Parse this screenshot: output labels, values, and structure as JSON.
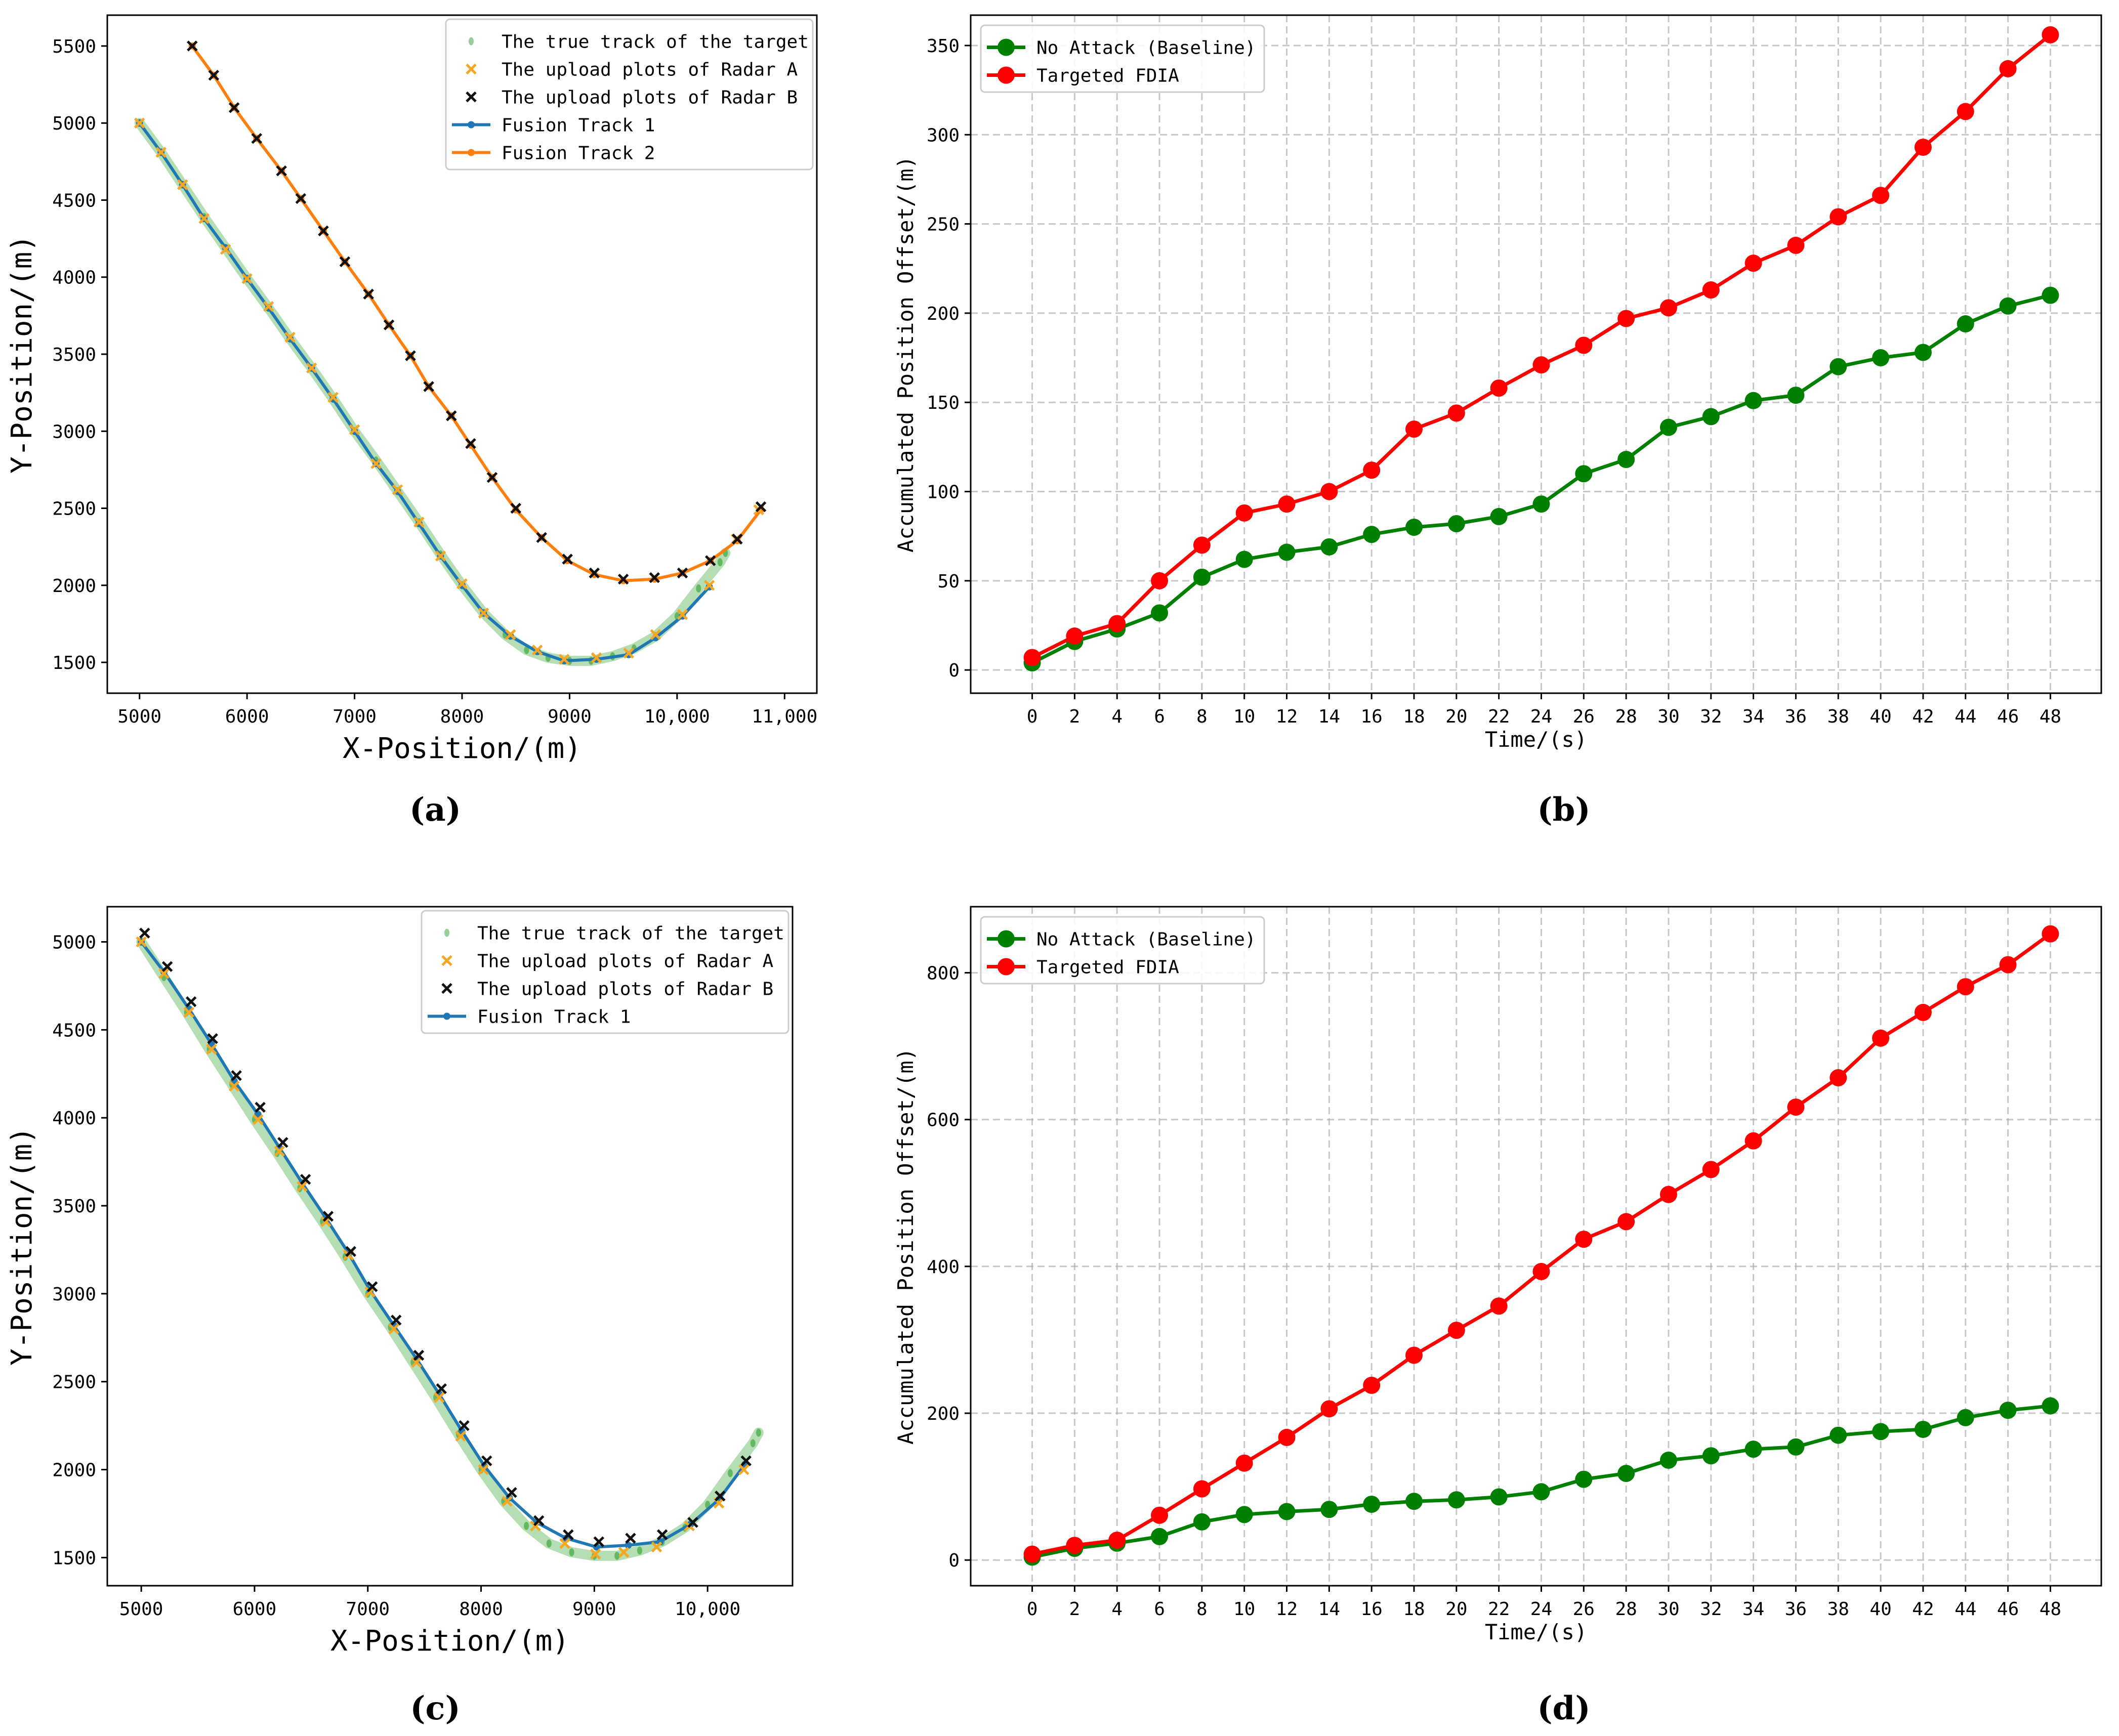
{
  "colors": {
    "true_track": "#2ca02c",
    "radar_a": "#f5a623",
    "radar_b": "#111111",
    "fusion_1": "#1f77b4",
    "fusion_2": "#ff7f0e",
    "no_attack": "#008000",
    "fdia": "#ff0000",
    "grid": "#b0b0b0"
  },
  "captions": [
    "(a)",
    "(b)",
    "(c)",
    "(d)"
  ],
  "chart_data": [
    {
      "id": "a",
      "type": "scatter",
      "caption": "(a)",
      "xlabel": "X-Position/(m)",
      "ylabel": "Y-Position/(m)",
      "xlim": [
        4700,
        11300
      ],
      "ylim": [
        1300,
        5700
      ],
      "xticks": [
        5000,
        6000,
        7000,
        8000,
        9000,
        10000,
        11000
      ],
      "xtick_labels": [
        "5000",
        "6000",
        "7000",
        "8000",
        "9000",
        "10,000",
        "11,000"
      ],
      "yticks": [
        1500,
        2000,
        2500,
        3000,
        3500,
        4000,
        4500,
        5000,
        5500
      ],
      "ytick_labels": [
        "1500",
        "2000",
        "2500",
        "3000",
        "3500",
        "4000",
        "4500",
        "5000",
        "5500"
      ],
      "grid": false,
      "legend_position": "top-right",
      "series": [
        {
          "name": "The true track of the target",
          "kind": "true",
          "x": [
            5000,
            5200,
            5400,
            5600,
            5800,
            6000,
            6200,
            6400,
            6600,
            6800,
            7000,
            7200,
            7400,
            7600,
            7800,
            8000,
            8200,
            8400,
            8600,
            8800,
            9000,
            9200,
            9400,
            9600,
            9800,
            10000,
            10200,
            10400,
            10450
          ],
          "y": [
            5000,
            4810,
            4600,
            4390,
            4190,
            3990,
            3800,
            3600,
            3410,
            3210,
            3000,
            2810,
            2610,
            2410,
            2200,
            2000,
            1820,
            1680,
            1580,
            1530,
            1510,
            1510,
            1540,
            1590,
            1670,
            1800,
            1980,
            2150,
            2210
          ]
        },
        {
          "name": "The upload plots of Radar A",
          "kind": "radarA",
          "x": [
            5000,
            5200,
            5400,
            5600,
            5800,
            6000,
            6200,
            6400,
            6600,
            6800,
            7000,
            7200,
            7400,
            7600,
            7800,
            8000,
            8200,
            8450,
            8700,
            8950,
            9250,
            9550,
            9800,
            10050,
            10300,
            10550,
            10760
          ],
          "y": [
            5000,
            4810,
            4600,
            4380,
            4180,
            3990,
            3810,
            3610,
            3410,
            3220,
            3010,
            2790,
            2620,
            2410,
            2190,
            2010,
            1820,
            1680,
            1580,
            1520,
            1530,
            1560,
            1680,
            1810,
            2000,
            2300,
            2490
          ]
        },
        {
          "name": "The upload plots of Radar B",
          "kind": "radarB",
          "x": [
            5490,
            5690,
            5880,
            6090,
            6320,
            6500,
            6710,
            6910,
            7130,
            7320,
            7520,
            7690,
            7900,
            8080,
            8280,
            8500,
            8740,
            8980,
            9230,
            9500,
            9790,
            10050,
            10310,
            10560,
            10780
          ],
          "y": [
            5500,
            5310,
            5100,
            4900,
            4690,
            4510,
            4300,
            4100,
            3890,
            3690,
            3490,
            3290,
            3100,
            2920,
            2700,
            2500,
            2310,
            2170,
            2080,
            2040,
            2050,
            2080,
            2160,
            2300,
            2510
          ]
        },
        {
          "name": "Fusion Track 1",
          "kind": "fusion1",
          "x": [
            5000,
            5200,
            5400,
            5600,
            5800,
            6000,
            6200,
            6400,
            6600,
            6800,
            7000,
            7200,
            7400,
            7600,
            7800,
            8000,
            8200,
            8450,
            8700,
            8950,
            9250,
            9550,
            9800,
            10050,
            10300
          ],
          "y": [
            5000,
            4810,
            4600,
            4380,
            4190,
            3990,
            3800,
            3600,
            3410,
            3210,
            3000,
            2790,
            2610,
            2400,
            2190,
            2000,
            1820,
            1670,
            1570,
            1510,
            1520,
            1550,
            1660,
            1800,
            1990
          ]
        },
        {
          "name": "Fusion Track 2",
          "kind": "fusion2",
          "x": [
            5490,
            5690,
            5880,
            6090,
            6320,
            6500,
            6710,
            6910,
            7130,
            7320,
            7520,
            7690,
            7900,
            8080,
            8280,
            8500,
            8740,
            8980,
            9230,
            9500,
            9790,
            10050,
            10310,
            10560,
            10780
          ],
          "y": [
            5500,
            5310,
            5100,
            4900,
            4690,
            4510,
            4300,
            4100,
            3890,
            3690,
            3490,
            3290,
            3100,
            2910,
            2700,
            2490,
            2310,
            2160,
            2070,
            2030,
            2040,
            2080,
            2160,
            2290,
            2490
          ]
        }
      ]
    },
    {
      "id": "b",
      "type": "line",
      "caption": "(b)",
      "xlabel": "Time/(s)",
      "ylabel": "Accumulated Position Offset/(m)",
      "xlim": [
        -2.9,
        50.4
      ],
      "ylim": [
        -13,
        367
      ],
      "xticks": [
        0,
        2,
        4,
        6,
        8,
        10,
        12,
        14,
        16,
        18,
        20,
        22,
        24,
        26,
        28,
        30,
        32,
        34,
        36,
        38,
        40,
        42,
        44,
        46,
        48
      ],
      "xtick_labels": [
        "0",
        "2",
        "4",
        "6",
        "8",
        "10",
        "12",
        "14",
        "16",
        "18",
        "20",
        "22",
        "24",
        "26",
        "28",
        "30",
        "32",
        "34",
        "36",
        "38",
        "40",
        "42",
        "44",
        "46",
        "48"
      ],
      "yticks": [
        0,
        50,
        100,
        150,
        200,
        250,
        300,
        350
      ],
      "ytick_labels": [
        "0",
        "50",
        "100",
        "150",
        "200",
        "250",
        "300",
        "350"
      ],
      "grid": true,
      "legend_position": "top-left",
      "x": [
        0,
        2,
        4,
        6,
        8,
        10,
        12,
        14,
        16,
        18,
        20,
        22,
        24,
        26,
        28,
        30,
        32,
        34,
        36,
        38,
        40,
        42,
        44,
        46,
        48
      ],
      "series": [
        {
          "name": "No Attack (Baseline)",
          "kind": "noattack",
          "values": [
            4,
            16,
            23,
            32,
            52,
            62,
            66,
            69,
            76,
            80,
            82,
            86,
            93,
            110,
            118,
            136,
            142,
            151,
            154,
            170,
            175,
            178,
            194,
            204,
            210
          ]
        },
        {
          "name": "Targeted FDIA",
          "kind": "fdia",
          "values": [
            7,
            19,
            26,
            50,
            70,
            88,
            93,
            100,
            112,
            135,
            144,
            158,
            171,
            182,
            197,
            203,
            213,
            228,
            238,
            254,
            266,
            293,
            313,
            337,
            356
          ]
        }
      ]
    },
    {
      "id": "c",
      "type": "scatter",
      "caption": "(c)",
      "xlabel": "X-Position/(m)",
      "ylabel": "Y-Position/(m)",
      "xlim": [
        4700,
        10750
      ],
      "ylim": [
        1340,
        5200
      ],
      "xticks": [
        5000,
        6000,
        7000,
        8000,
        9000,
        10000
      ],
      "xtick_labels": [
        "5000",
        "6000",
        "7000",
        "8000",
        "9000",
        "10,000"
      ],
      "yticks": [
        1500,
        2000,
        2500,
        3000,
        3500,
        4000,
        4500,
        5000
      ],
      "ytick_labels": [
        "1500",
        "2000",
        "2500",
        "3000",
        "3500",
        "4000",
        "4500",
        "5000"
      ],
      "grid": false,
      "legend_position": "top-right",
      "series": [
        {
          "name": "The true track of the target",
          "kind": "true",
          "x": [
            5000,
            5200,
            5400,
            5600,
            5800,
            6000,
            6200,
            6400,
            6600,
            6800,
            7000,
            7200,
            7400,
            7600,
            7800,
            8000,
            8200,
            8400,
            8600,
            8800,
            9000,
            9200,
            9400,
            9600,
            9800,
            10000,
            10200,
            10400,
            10450
          ],
          "y": [
            5000,
            4800,
            4600,
            4390,
            4190,
            3990,
            3800,
            3600,
            3410,
            3210,
            3000,
            2810,
            2610,
            2410,
            2200,
            2000,
            1820,
            1680,
            1580,
            1530,
            1510,
            1510,
            1540,
            1590,
            1670,
            1800,
            1980,
            2150,
            2210
          ]
        },
        {
          "name": "The upload plots of Radar A",
          "kind": "radarA",
          "x": [
            5000,
            5200,
            5420,
            5620,
            5820,
            6030,
            6220,
            6420,
            6630,
            6830,
            7020,
            7230,
            7430,
            7630,
            7820,
            8020,
            8230,
            8480,
            8740,
            9010,
            9260,
            9550,
            9840,
            10100,
            10320
          ],
          "y": [
            5000,
            4820,
            4600,
            4390,
            4180,
            3990,
            3810,
            3610,
            3410,
            3220,
            3010,
            2800,
            2610,
            2410,
            2190,
            2000,
            1820,
            1680,
            1580,
            1520,
            1530,
            1560,
            1680,
            1810,
            2000
          ]
        },
        {
          "name": "The upload plots of Radar B",
          "kind": "radarB",
          "x": [
            5030,
            5230,
            5440,
            5630,
            5840,
            6050,
            6250,
            6450,
            6650,
            6850,
            7040,
            7250,
            7450,
            7650,
            7850,
            8050,
            8270,
            8510,
            8770,
            9040,
            9320,
            9600,
            9870,
            10110,
            10340
          ],
          "y": [
            5050,
            4860,
            4660,
            4450,
            4240,
            4060,
            3860,
            3650,
            3440,
            3240,
            3040,
            2850,
            2650,
            2460,
            2250,
            2050,
            1870,
            1710,
            1630,
            1590,
            1610,
            1630,
            1700,
            1850,
            2050
          ]
        },
        {
          "name": "Fusion Track 1",
          "kind": "fusion1",
          "x": [
            5000,
            5200,
            5420,
            5620,
            5820,
            6030,
            6220,
            6420,
            6630,
            6830,
            7020,
            7230,
            7430,
            7630,
            7830,
            8030,
            8250,
            8490,
            8750,
            9020,
            9300,
            9580,
            9850,
            10100,
            10330
          ],
          "y": [
            5000,
            4830,
            4620,
            4420,
            4210,
            4020,
            3830,
            3630,
            3430,
            3230,
            3020,
            2820,
            2630,
            2430,
            2220,
            2020,
            1840,
            1700,
            1610,
            1560,
            1570,
            1590,
            1690,
            1830,
            2030
          ]
        }
      ]
    },
    {
      "id": "d",
      "type": "line",
      "caption": "(d)",
      "xlabel": "Time/(s)",
      "ylabel": "Accumulated Position Offset/(m)",
      "xlim": [
        -2.9,
        50.4
      ],
      "ylim": [
        -35,
        890
      ],
      "xticks": [
        0,
        2,
        4,
        6,
        8,
        10,
        12,
        14,
        16,
        18,
        20,
        22,
        24,
        26,
        28,
        30,
        32,
        34,
        36,
        38,
        40,
        42,
        44,
        46,
        48
      ],
      "xtick_labels": [
        "0",
        "2",
        "4",
        "6",
        "8",
        "10",
        "12",
        "14",
        "16",
        "18",
        "20",
        "22",
        "24",
        "26",
        "28",
        "30",
        "32",
        "34",
        "36",
        "38",
        "40",
        "42",
        "44",
        "46",
        "48"
      ],
      "yticks": [
        0,
        200,
        400,
        600,
        800
      ],
      "ytick_labels": [
        "0",
        "200",
        "400",
        "600",
        "800"
      ],
      "grid": true,
      "legend_position": "top-left",
      "x": [
        0,
        2,
        4,
        6,
        8,
        10,
        12,
        14,
        16,
        18,
        20,
        22,
        24,
        26,
        28,
        30,
        32,
        34,
        36,
        38,
        40,
        42,
        44,
        46,
        48
      ],
      "series": [
        {
          "name": "No Attack (Baseline)",
          "kind": "noattack",
          "values": [
            4,
            16,
            23,
            32,
            52,
            62,
            66,
            69,
            76,
            80,
            82,
            86,
            93,
            110,
            118,
            136,
            142,
            151,
            154,
            170,
            175,
            178,
            194,
            204,
            210
          ]
        },
        {
          "name": "Targeted FDIA",
          "kind": "fdia",
          "values": [
            8,
            20,
            27,
            61,
            97,
            132,
            167,
            206,
            238,
            279,
            313,
            346,
            393,
            437,
            461,
            498,
            532,
            571,
            617,
            657,
            711,
            746,
            781,
            811,
            853
          ]
        }
      ]
    }
  ]
}
